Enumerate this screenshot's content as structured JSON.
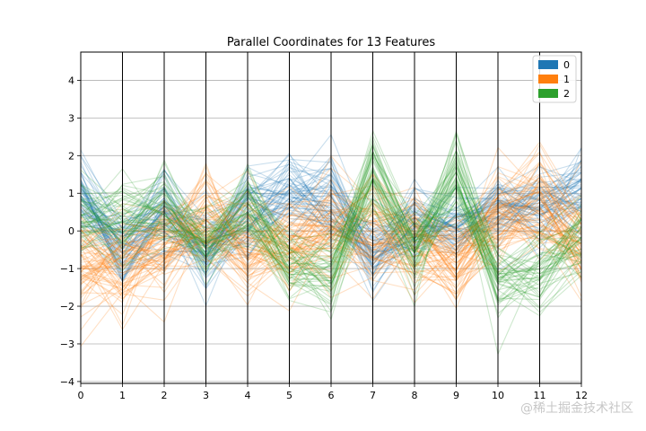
{
  "chart_data": {
    "type": "line",
    "title": "Parallel Coordinates for 13 Features",
    "x": [
      0,
      1,
      2,
      3,
      4,
      5,
      6,
      7,
      8,
      9,
      10,
      11,
      12
    ],
    "x_ticks": [
      "0",
      "1",
      "2",
      "3",
      "4",
      "5",
      "6",
      "7",
      "8",
      "9",
      "10",
      "11",
      "12"
    ],
    "y_ticks": [
      "−4",
      "−3",
      "−2",
      "−1",
      "0",
      "1",
      "2",
      "3",
      "4"
    ],
    "xlim": [
      0,
      12
    ],
    "ylim": [
      -4.05,
      4.75
    ],
    "grid": "horizontal",
    "legend": {
      "placement": "top-right",
      "entries": [
        {
          "label": "0",
          "color": "#1f77b4"
        },
        {
          "label": "1",
          "color": "#ff7f0e"
        },
        {
          "label": "2",
          "color": "#2ca02c"
        }
      ]
    },
    "series": [
      {
        "name": "0",
        "color": "#1f77b4",
        "values": [
          0.9,
          -0.4,
          0.4,
          -0.6,
          0.6,
          1.0,
          0.8,
          -0.6,
          0.3,
          0.1,
          0.6,
          0.7,
          1.1
        ]
      },
      {
        "name": "1",
        "color": "#ff7f0e",
        "values": [
          -0.9,
          -0.8,
          -0.4,
          0.2,
          -0.4,
          -0.3,
          0.2,
          0.0,
          -0.4,
          -0.8,
          0.4,
          0.8,
          -0.5
        ]
      },
      {
        "name": "2",
        "color": "#2ca02c",
        "values": [
          0.4,
          0.2,
          0.7,
          -0.3,
          0.6,
          -0.8,
          -1.2,
          1.6,
          -0.6,
          1.6,
          -1.4,
          -1.2,
          -0.2
        ]
      }
    ]
  },
  "watermark": "@稀土掘金技术社区"
}
